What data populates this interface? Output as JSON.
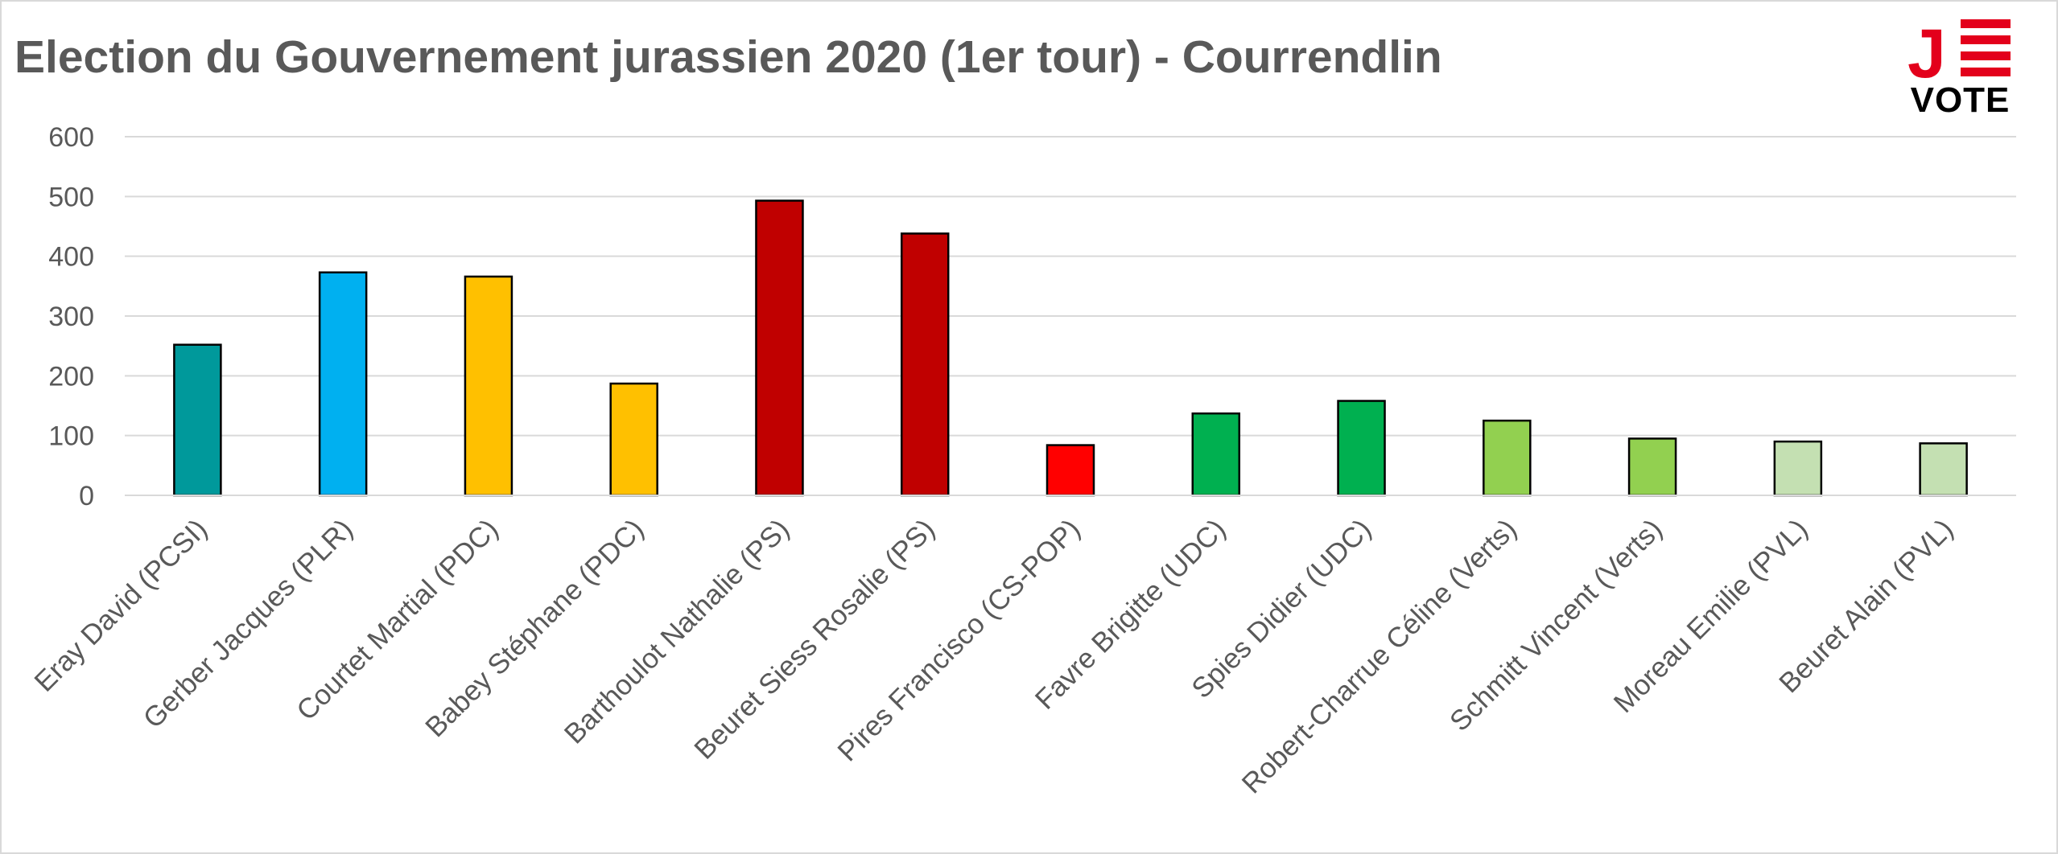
{
  "chart_data": {
    "type": "bar",
    "title": "Election du Gouvernement jurassien 2020 (1er tour) - Courrendlin",
    "xlabel": "",
    "ylabel": "",
    "ylim": [
      0,
      600
    ],
    "yticks": [
      "0",
      "100",
      "200",
      "300",
      "400",
      "500",
      "600"
    ],
    "grid": true,
    "legend": "none",
    "categories": [
      "Eray David (PCSI)",
      "Gerber Jacques (PLR)",
      "Courtet Martial (PDC)",
      "Babey Stéphane (PDC)",
      "Barthoulot Nathalie (PS)",
      "Beuret Siess Rosalie (PS)",
      "Pires Francisco (CS-POP)",
      "Favre Brigitte (UDC)",
      "Spies Didier (UDC)",
      "Robert-Charrue Céline (Verts)",
      "Schmitt Vincent (Verts)",
      "Moreau Emilie (PVL)",
      "Beuret Alain (PVL)"
    ],
    "values": [
      252,
      373,
      366,
      187,
      493,
      438,
      84,
      137,
      158,
      125,
      95,
      90,
      87
    ],
    "bar_colors": [
      "#00999b",
      "#00b0f0",
      "#ffc000",
      "#ffc000",
      "#c00000",
      "#c00000",
      "#ff0000",
      "#00b050",
      "#00b050",
      "#92d050",
      "#92d050",
      "#c4e0b2",
      "#c4e0b2"
    ]
  },
  "logo": {
    "letter": "J",
    "text": "VOTE",
    "color": "#e3001b"
  }
}
